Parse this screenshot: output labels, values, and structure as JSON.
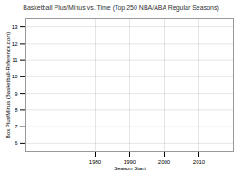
{
  "chart_data": {
    "type": "scatter",
    "title": "Basketball Plus/Minus vs. Time (Top 250 NBA/ABA Regular Seasons)",
    "xlabel": "Season Start",
    "ylabel": "Box Plus/Minus (Basketball-Reference.com)",
    "xlim": [
      1960,
      2020
    ],
    "ylim": [
      5.5,
      13.5
    ],
    "xticks": [
      1980,
      1990,
      2000,
      2010
    ],
    "yticks": [
      6,
      7,
      8,
      9,
      10,
      11,
      12,
      13
    ],
    "grid": true
  }
}
